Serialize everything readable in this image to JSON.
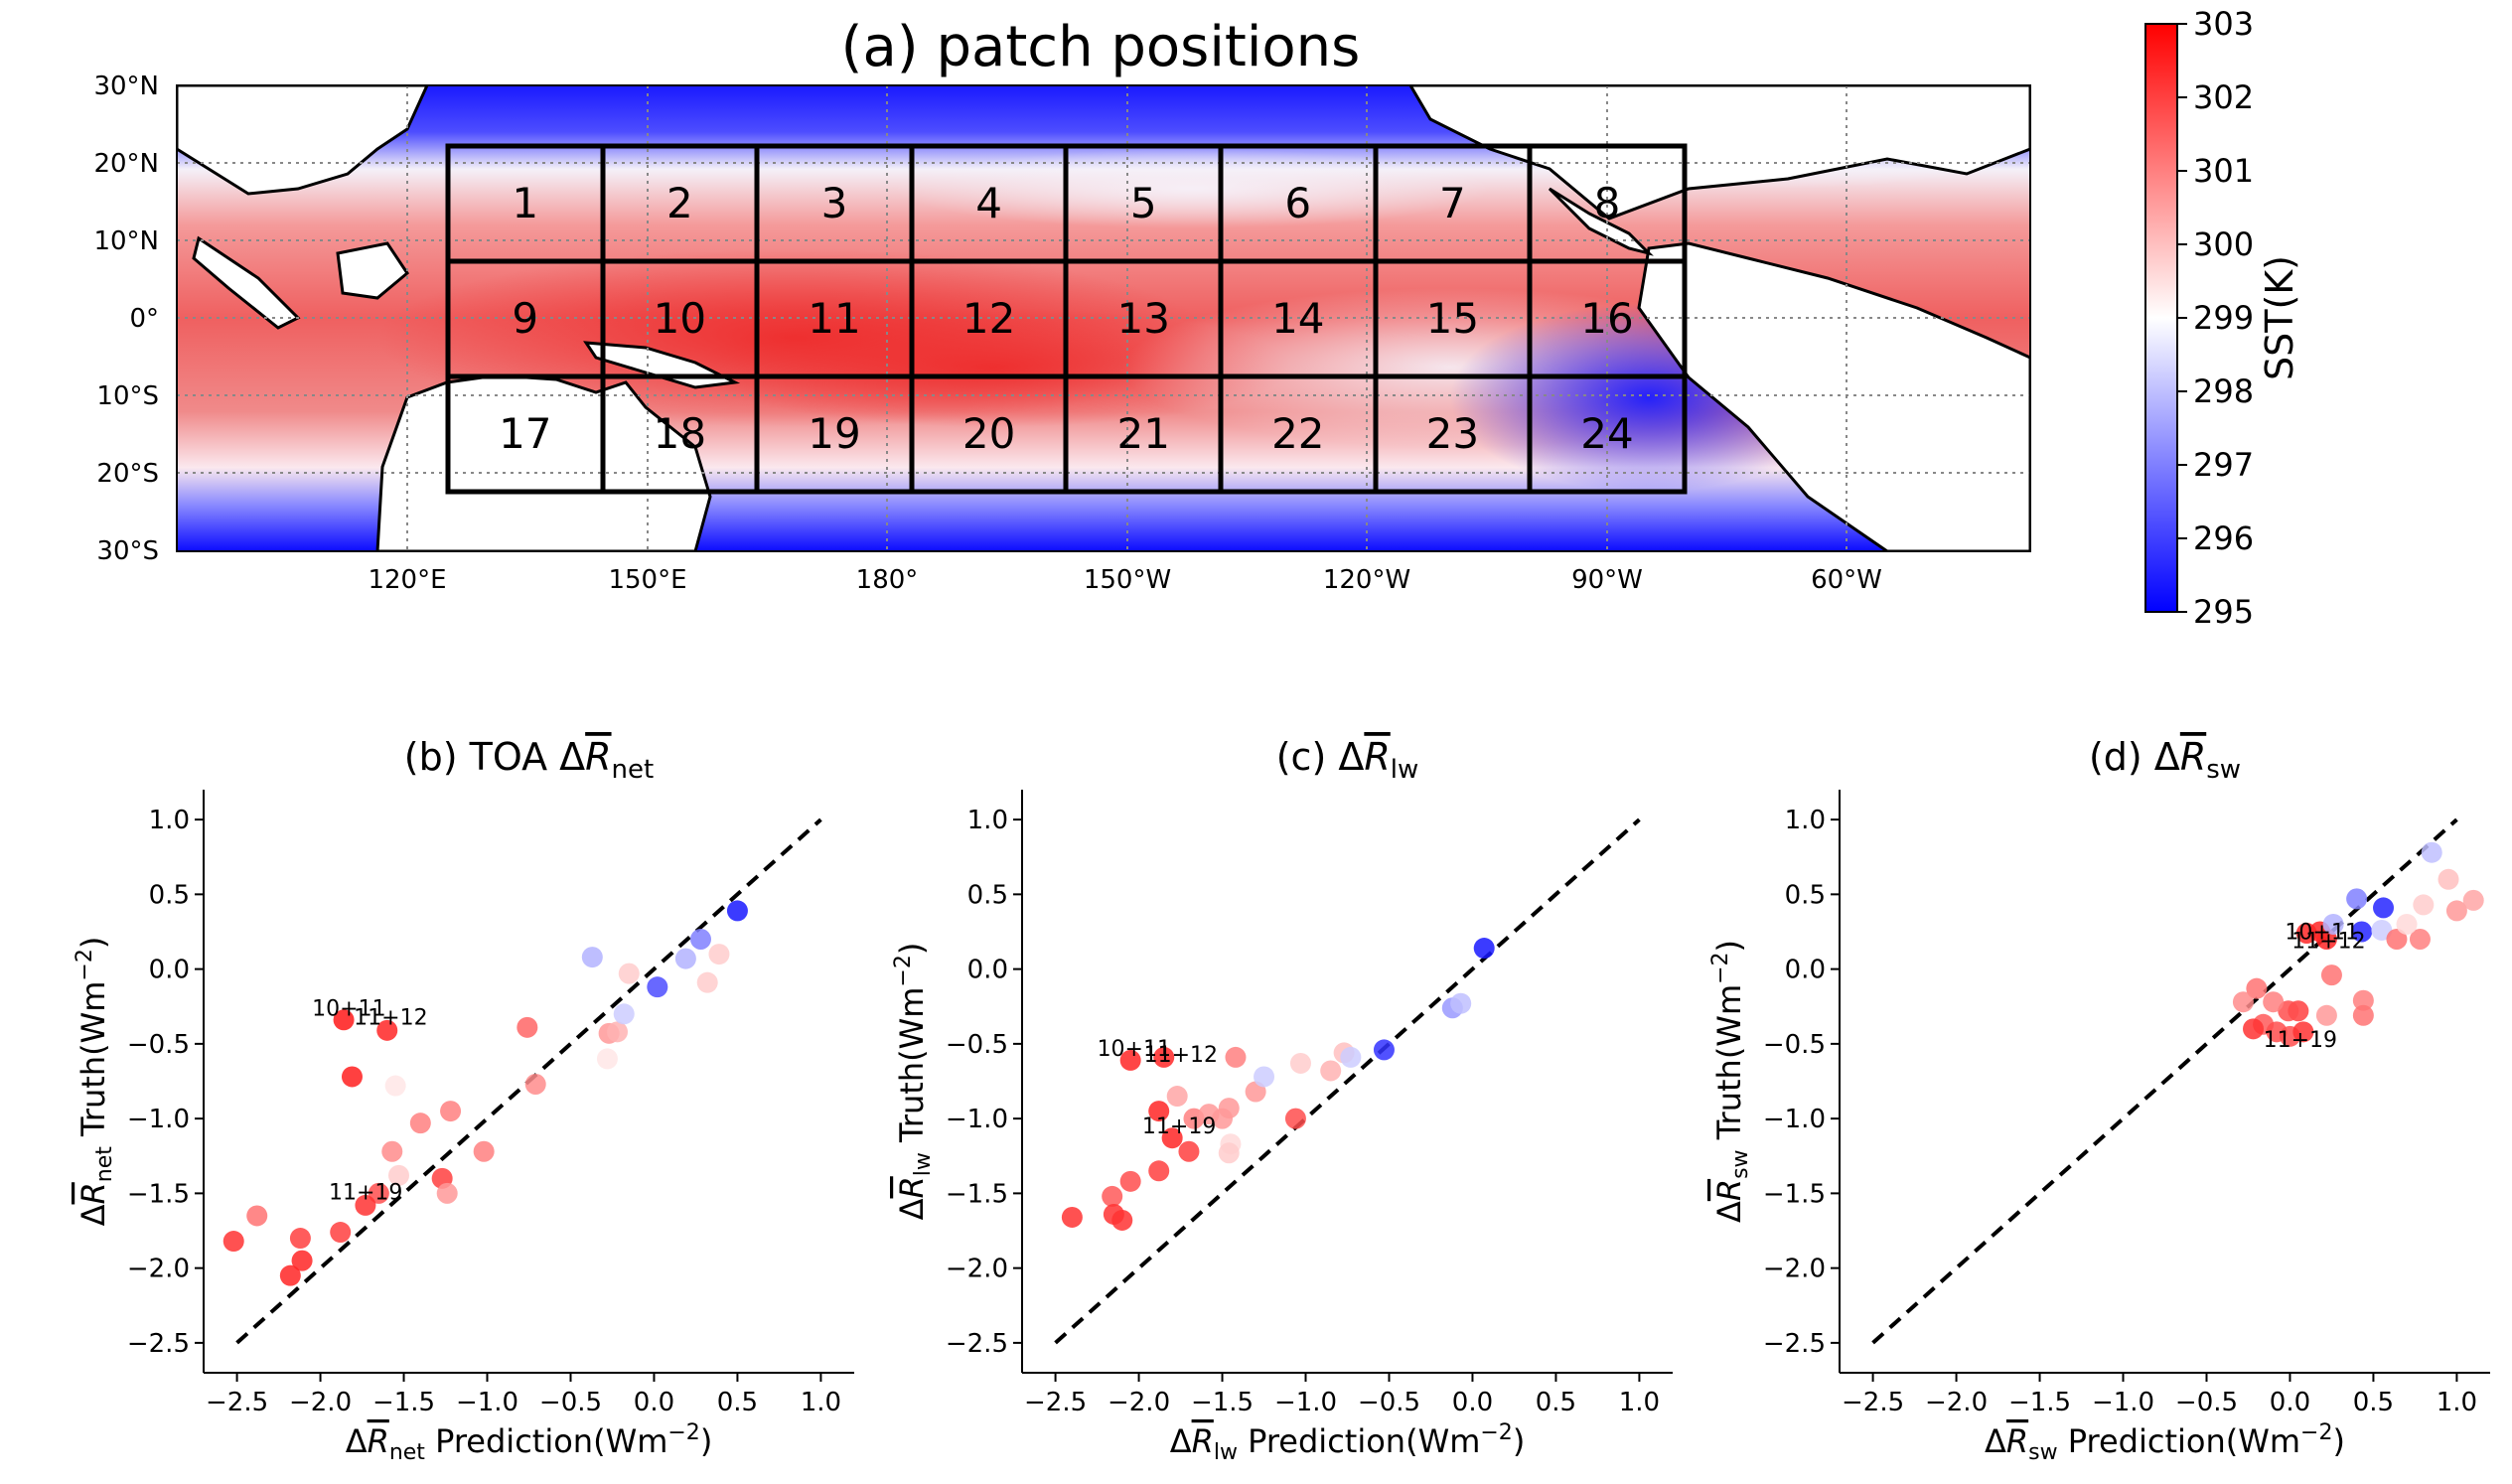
{
  "colors": {
    "warm": "#ff0000",
    "neutral": "#ffffff",
    "cool": "#0000ff",
    "land": "#ffffff",
    "coast": "#000000"
  },
  "panel_a": {
    "title": "(a) patch positions",
    "lat_labels": [
      "30°N",
      "20°N",
      "10°N",
      "0°",
      "10°S",
      "20°S",
      "30°S"
    ],
    "lon_labels": [
      "120°E",
      "150°E",
      "180°",
      "150°W",
      "120°W",
      "90°W",
      "60°W"
    ],
    "patch_labels": [
      "1",
      "2",
      "3",
      "4",
      "5",
      "6",
      "7",
      "8",
      "9",
      "10",
      "11",
      "12",
      "13",
      "14",
      "15",
      "16",
      "17",
      "18",
      "19",
      "20",
      "21",
      "22",
      "23",
      "24"
    ],
    "colorbar": {
      "label": "SST(K)",
      "ticks": [
        "295",
        "296",
        "297",
        "298",
        "299",
        "300",
        "301",
        "302",
        "303"
      ]
    }
  },
  "chart_data": [
    {
      "type": "scatter",
      "title_prefix": "(b) TOA Δ",
      "title_var": "R",
      "title_sub": "net",
      "xlabel": "Prediction(Wm",
      "ylabel": "Truth(Wm",
      "sub": "net",
      "xlim": [
        -2.7,
        1.2
      ],
      "ylim": [
        -2.7,
        1.2
      ],
      "xticks": [
        "-2.5",
        "-2.0",
        "-1.5",
        "-1.0",
        "-0.5",
        "0.0",
        "0.5",
        "1.0"
      ],
      "yticks": [
        "1.0",
        "0.5",
        "0.0",
        "-0.5",
        "-1.0",
        "-1.5",
        "-2.0",
        "-2.5"
      ],
      "points": [
        {
          "x": -1.86,
          "y": -0.34,
          "c": 0.9
        },
        {
          "x": -1.6,
          "y": -0.41,
          "c": 0.85
        },
        {
          "x": -1.81,
          "y": -0.72,
          "c": 0.88
        },
        {
          "x": -1.55,
          "y": -0.78,
          "c": 0.1
        },
        {
          "x": -1.4,
          "y": -1.03,
          "c": 0.5
        },
        {
          "x": -1.22,
          "y": -0.95,
          "c": 0.5
        },
        {
          "x": -1.02,
          "y": -1.22,
          "c": 0.5
        },
        {
          "x": -1.57,
          "y": -1.22,
          "c": 0.45
        },
        {
          "x": -1.53,
          "y": -1.38,
          "c": 0.2
        },
        {
          "x": -1.27,
          "y": -1.4,
          "c": 0.75
        },
        {
          "x": -1.24,
          "y": -1.5,
          "c": 0.4
        },
        {
          "x": -1.65,
          "y": -1.5,
          "c": 0.7
        },
        {
          "x": -1.73,
          "y": -1.58,
          "c": 0.8
        },
        {
          "x": -1.88,
          "y": -1.76,
          "c": 0.75
        },
        {
          "x": -2.12,
          "y": -1.8,
          "c": 0.75
        },
        {
          "x": -2.11,
          "y": -1.95,
          "c": 0.85
        },
        {
          "x": -2.18,
          "y": -2.05,
          "c": 0.85
        },
        {
          "x": -2.52,
          "y": -1.82,
          "c": 0.8
        },
        {
          "x": -2.38,
          "y": -1.65,
          "c": 0.55
        },
        {
          "x": -0.76,
          "y": -0.39,
          "c": 0.6
        },
        {
          "x": -0.71,
          "y": -0.77,
          "c": 0.45
        },
        {
          "x": -0.27,
          "y": -0.43,
          "c": 0.4
        },
        {
          "x": -0.22,
          "y": -0.42,
          "c": 0.3
        },
        {
          "x": -0.28,
          "y": -0.6,
          "c": 0.1
        },
        {
          "x": -0.37,
          "y": 0.08,
          "c": -0.3
        },
        {
          "x": -0.15,
          "y": -0.03,
          "c": 0.2
        },
        {
          "x": -0.18,
          "y": -0.3,
          "c": -0.2
        },
        {
          "x": 0.02,
          "y": -0.12,
          "c": -0.7
        },
        {
          "x": 0.19,
          "y": 0.07,
          "c": -0.3
        },
        {
          "x": 0.28,
          "y": 0.2,
          "c": -0.5
        },
        {
          "x": 0.39,
          "y": 0.1,
          "c": 0.2
        },
        {
          "x": 0.32,
          "y": -0.09,
          "c": 0.2
        },
        {
          "x": 0.5,
          "y": 0.39,
          "c": -0.9
        }
      ],
      "annotations": [
        {
          "text": "10+11",
          "x": -2.05,
          "y": -0.31
        },
        {
          "text": "11+12",
          "x": -1.8,
          "y": -0.37
        },
        {
          "text": "11+19",
          "x": -1.95,
          "y": -1.54
        }
      ]
    },
    {
      "type": "scatter",
      "title_prefix": "(c) Δ",
      "title_var": "R",
      "title_sub": "lw",
      "xlabel": "Prediction(Wm",
      "ylabel": "Truth(Wm",
      "sub": "lw",
      "xlim": [
        -2.7,
        1.2
      ],
      "ylim": [
        -2.7,
        1.2
      ],
      "xticks": [
        "-2.5",
        "-2.0",
        "-1.5",
        "-1.0",
        "-0.5",
        "0.0",
        "0.5",
        "1.0"
      ],
      "yticks": [
        "1.0",
        "0.5",
        "0.0",
        "-0.5",
        "-1.0",
        "-1.5",
        "-2.0",
        "-2.5"
      ],
      "points": [
        {
          "x": -2.05,
          "y": -0.61,
          "c": 0.85
        },
        {
          "x": -1.85,
          "y": -0.59,
          "c": 0.85
        },
        {
          "x": -1.42,
          "y": -0.59,
          "c": 0.5
        },
        {
          "x": -1.88,
          "y": -0.95,
          "c": 0.85
        },
        {
          "x": -1.8,
          "y": -1.13,
          "c": 0.85
        },
        {
          "x": -1.7,
          "y": -1.22,
          "c": 0.75
        },
        {
          "x": -1.67,
          "y": -1.0,
          "c": 0.5
        },
        {
          "x": -1.58,
          "y": -0.97,
          "c": 0.4
        },
        {
          "x": -1.5,
          "y": -1.0,
          "c": 0.4
        },
        {
          "x": -1.46,
          "y": -0.93,
          "c": 0.4
        },
        {
          "x": -1.45,
          "y": -1.17,
          "c": 0.15
        },
        {
          "x": -1.46,
          "y": -1.23,
          "c": 0.2
        },
        {
          "x": -1.3,
          "y": -0.82,
          "c": 0.4
        },
        {
          "x": -1.25,
          "y": -0.72,
          "c": -0.2
        },
        {
          "x": -1.06,
          "y": -1.0,
          "c": 0.7
        },
        {
          "x": -1.03,
          "y": -0.63,
          "c": 0.2
        },
        {
          "x": -0.85,
          "y": -0.68,
          "c": 0.3
        },
        {
          "x": -0.77,
          "y": -0.56,
          "c": 0.25
        },
        {
          "x": -0.73,
          "y": -0.59,
          "c": -0.2
        },
        {
          "x": -0.53,
          "y": -0.54,
          "c": -0.8
        },
        {
          "x": -0.12,
          "y": -0.26,
          "c": -0.4
        },
        {
          "x": -0.07,
          "y": -0.23,
          "c": -0.25
        },
        {
          "x": 0.07,
          "y": 0.14,
          "c": -0.9
        },
        {
          "x": -1.88,
          "y": -1.35,
          "c": 0.75
        },
        {
          "x": -2.05,
          "y": -1.42,
          "c": 0.7
        },
        {
          "x": -2.16,
          "y": -1.52,
          "c": 0.65
        },
        {
          "x": -2.15,
          "y": -1.64,
          "c": 0.8
        },
        {
          "x": -2.1,
          "y": -1.68,
          "c": 0.8
        },
        {
          "x": -2.4,
          "y": -1.66,
          "c": 0.8
        },
        {
          "x": -1.77,
          "y": -0.85,
          "c": 0.35
        }
      ],
      "annotations": [
        {
          "text": "10+11",
          "x": -2.25,
          "y": -0.58
        },
        {
          "text": "11+12",
          "x": -1.97,
          "y": -0.62
        },
        {
          "text": "11+19",
          "x": -1.98,
          "y": -1.1
        }
      ]
    },
    {
      "type": "scatter",
      "title_prefix": "(d) Δ",
      "title_var": "R",
      "title_sub": "sw",
      "xlabel": "Prediction(Wm",
      "ylabel": "Truth(Wm",
      "sub": "sw",
      "xlim": [
        -2.7,
        1.2
      ],
      "ylim": [
        -2.7,
        1.2
      ],
      "xticks": [
        "-2.5",
        "-2.0",
        "-1.5",
        "-1.0",
        "-0.5",
        "0.0",
        "0.5",
        "1.0"
      ],
      "yticks": [
        "1.0",
        "0.5",
        "0.0",
        "-0.5",
        "-1.0",
        "-1.5",
        "-2.0",
        "-2.5"
      ],
      "points": [
        {
          "x": 0.1,
          "y": 0.24,
          "c": 0.85
        },
        {
          "x": 0.18,
          "y": 0.25,
          "c": 0.85
        },
        {
          "x": 0.22,
          "y": 0.2,
          "c": 0.85
        },
        {
          "x": 0.26,
          "y": 0.3,
          "c": -0.3
        },
        {
          "x": 0.4,
          "y": 0.47,
          "c": -0.5
        },
        {
          "x": 0.43,
          "y": 0.25,
          "c": -0.85
        },
        {
          "x": 0.56,
          "y": 0.41,
          "c": -0.85
        },
        {
          "x": 0.55,
          "y": 0.26,
          "c": -0.2
        },
        {
          "x": 0.64,
          "y": 0.2,
          "c": 0.55
        },
        {
          "x": 0.78,
          "y": 0.2,
          "c": 0.5
        },
        {
          "x": 0.8,
          "y": 0.43,
          "c": 0.2
        },
        {
          "x": 0.85,
          "y": 0.78,
          "c": -0.25
        },
        {
          "x": 0.95,
          "y": 0.6,
          "c": 0.25
        },
        {
          "x": 1.0,
          "y": 0.39,
          "c": 0.4
        },
        {
          "x": 1.1,
          "y": 0.46,
          "c": 0.35
        },
        {
          "x": 0.7,
          "y": 0.3,
          "c": 0.15
        },
        {
          "x": 0.25,
          "y": -0.04,
          "c": 0.55
        },
        {
          "x": 0.05,
          "y": -0.28,
          "c": 0.75
        },
        {
          "x": -0.01,
          "y": -0.28,
          "c": 0.7
        },
        {
          "x": -0.1,
          "y": -0.22,
          "c": 0.5
        },
        {
          "x": -0.2,
          "y": -0.13,
          "c": 0.55
        },
        {
          "x": -0.28,
          "y": -0.22,
          "c": 0.45
        },
        {
          "x": -0.16,
          "y": -0.37,
          "c": 0.65
        },
        {
          "x": -0.08,
          "y": -0.42,
          "c": 0.7
        },
        {
          "x": 0.0,
          "y": -0.45,
          "c": 0.7
        },
        {
          "x": 0.08,
          "y": -0.42,
          "c": 0.8
        },
        {
          "x": -0.22,
          "y": -0.4,
          "c": 0.8
        },
        {
          "x": 0.22,
          "y": -0.31,
          "c": 0.4
        },
        {
          "x": 0.44,
          "y": -0.21,
          "c": 0.5
        },
        {
          "x": 0.44,
          "y": -0.31,
          "c": 0.55
        }
      ],
      "annotations": [
        {
          "text": "10+11",
          "x": -0.03,
          "y": 0.2
        },
        {
          "text": "11+12",
          "x": 0.01,
          "y": 0.14
        },
        {
          "text": "11+19",
          "x": -0.16,
          "y": -0.52
        }
      ]
    }
  ]
}
